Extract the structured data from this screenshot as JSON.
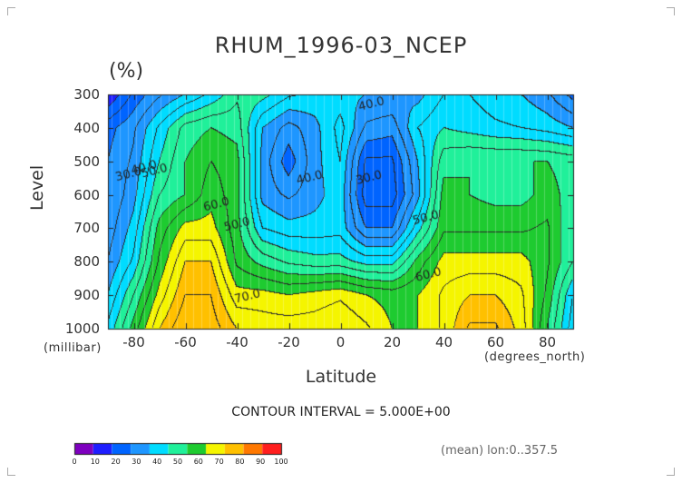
{
  "chart_data": {
    "type": "heatmap",
    "title": "RHUM_1996-03_NCEP",
    "units": "(%)",
    "xlabel": "Latitude",
    "x_unit_label": "(degrees_north)",
    "ylabel": "Level",
    "y_unit_label": "(millibar)",
    "xlim": [
      -90,
      90
    ],
    "ylim": [
      1000,
      300
    ],
    "x_ticks": [
      "-80",
      "-60",
      "-40",
      "-20",
      "0",
      "20",
      "40",
      "60",
      "80"
    ],
    "x_tick_values": [
      -80,
      -60,
      -40,
      -20,
      0,
      20,
      40,
      60,
      80
    ],
    "y_ticks": [
      "300",
      "400",
      "500",
      "600",
      "700",
      "800",
      "900",
      "1000"
    ],
    "y_tick_values": [
      300,
      400,
      500,
      600,
      700,
      800,
      900,
      1000
    ],
    "contour_interval_label": "CONTOUR INTERVAL = 5.000E+00",
    "note": "(mean) lon:0..357.5",
    "contour_labels": [
      {
        "text": "40.0",
        "lat": 12,
        "lev": 330
      },
      {
        "text": "30.0",
        "lat": -82,
        "lev": 540
      },
      {
        "text": "40.0",
        "lat": -76,
        "lev": 520
      },
      {
        "text": "50.0",
        "lat": -72,
        "lev": 530
      },
      {
        "text": "40.0",
        "lat": -12,
        "lev": 550
      },
      {
        "text": "30.0",
        "lat": 11,
        "lev": 550
      },
      {
        "text": "60.0",
        "lat": -48,
        "lev": 630
      },
      {
        "text": "50.0",
        "lat": -40,
        "lev": 690
      },
      {
        "text": "50.0",
        "lat": 33,
        "lev": 670
      },
      {
        "text": "60.0",
        "lat": 34,
        "lev": 840
      },
      {
        "text": "70.0",
        "lat": -36,
        "lev": 905
      }
    ],
    "colorbar": {
      "ticks": [
        "0",
        "10",
        "20",
        "30",
        "40",
        "50",
        "60",
        "70",
        "80",
        "90",
        "100"
      ],
      "colors": [
        "#7e00bf",
        "#1e1eff",
        "#0064ff",
        "#1e96ff",
        "#00dcff",
        "#20f09a",
        "#1ecb30",
        "#f5f500",
        "#ffc000",
        "#ff7800",
        "#ff1e1e"
      ]
    },
    "lat_grid": [
      -90,
      -80,
      -70,
      -60,
      -50,
      -40,
      -30,
      -20,
      -10,
      0,
      10,
      20,
      30,
      40,
      50,
      60,
      70,
      80,
      90
    ],
    "levels": [
      300,
      400,
      500,
      600,
      700,
      800,
      900,
      1000
    ],
    "values": [
      [
        15,
        26,
        34,
        40,
        46,
        54,
        52,
        46,
        44,
        42,
        40,
        40,
        38,
        45,
        45,
        42,
        40,
        36,
        28
      ],
      [
        28,
        34,
        46,
        57,
        60,
        58,
        40,
        33,
        38,
        47,
        34,
        32,
        45,
        50,
        48,
        46,
        45,
        43,
        40
      ],
      [
        30,
        36,
        50,
        60,
        65,
        62,
        38,
        27,
        38,
        45,
        24,
        24,
        40,
        58,
        60,
        60,
        60,
        60,
        58
      ],
      [
        30,
        38,
        55,
        60,
        68,
        62,
        38,
        34,
        38,
        43,
        22,
        22,
        38,
        62,
        60,
        58,
        58,
        62,
        58
      ],
      [
        32,
        42,
        62,
        72,
        72,
        62,
        45,
        42,
        42,
        43,
        30,
        30,
        48,
        64,
        64,
        64,
        64,
        66,
        55
      ],
      [
        35,
        46,
        66,
        80,
        80,
        64,
        58,
        54,
        52,
        52,
        48,
        48,
        62,
        72,
        72,
        72,
        72,
        66,
        55
      ],
      [
        40,
        55,
        72,
        85,
        85,
        72,
        72,
        70,
        72,
        74,
        70,
        68,
        70,
        76,
        80,
        80,
        76,
        64,
        45
      ],
      [
        46,
        62,
        80,
        90,
        88,
        80,
        78,
        78,
        78,
        80,
        76,
        70,
        70,
        76,
        86,
        86,
        78,
        60,
        42
      ]
    ]
  }
}
